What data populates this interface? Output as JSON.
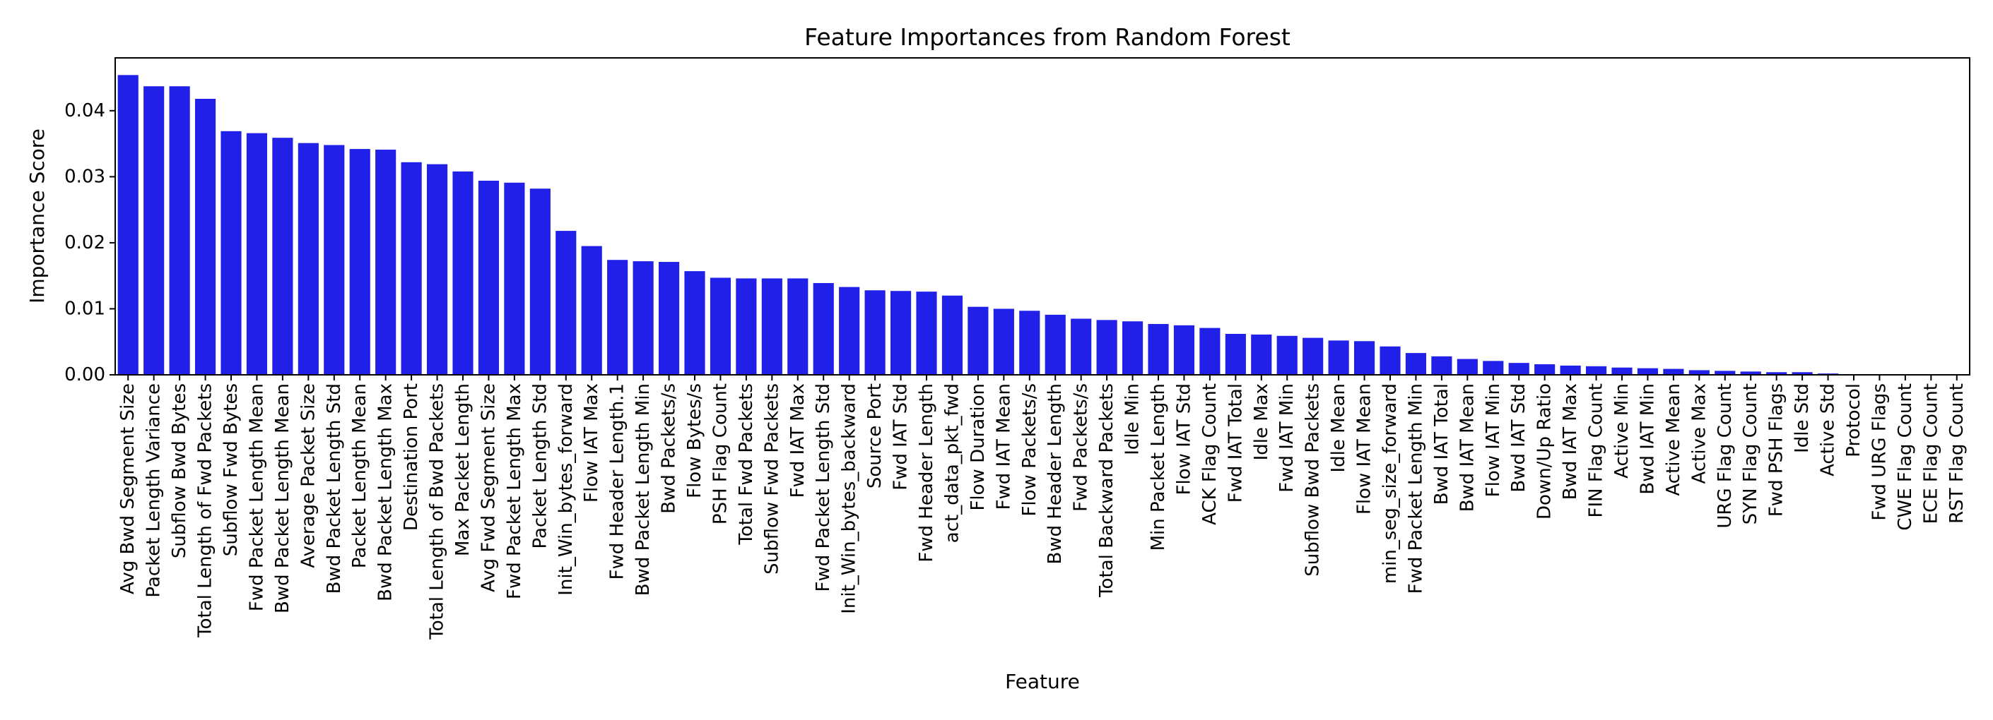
{
  "chart_data": {
    "type": "bar",
    "title": "Feature Importances from Random Forest",
    "xlabel": "Feature",
    "ylabel": "Importance Score",
    "ylim": [
      0,
      0.048
    ],
    "yticks": [
      "0.00",
      "0.01",
      "0.02",
      "0.03",
      "0.04"
    ],
    "grid": false,
    "color": "#2020e8",
    "categories": [
      "Avg Bwd Segment Size",
      "Packet Length Variance",
      "Subflow Bwd Bytes",
      "Total Length of Fwd Packets",
      "Subflow Fwd Bytes",
      "Fwd Packet Length Mean",
      "Bwd Packet Length Mean",
      "Average Packet Size",
      "Bwd Packet Length Std",
      "Packet Length Mean",
      "Bwd Packet Length Max",
      "Destination Port",
      "Total Length of Bwd Packets",
      "Max Packet Length",
      "Avg Fwd Segment Size",
      "Fwd Packet Length Max",
      "Packet Length Std",
      "Init_Win_bytes_forward",
      "Flow IAT Max",
      "Fwd Header Length.1",
      "Bwd Packet Length Min",
      "Bwd Packets/s",
      "Flow Bytes/s",
      "PSH Flag Count",
      "Total Fwd Packets",
      "Subflow Fwd Packets",
      "Fwd IAT Max",
      "Fwd Packet Length Std",
      "Init_Win_bytes_backward",
      "Source Port",
      "Fwd IAT Std",
      "Fwd Header Length",
      "act_data_pkt_fwd",
      "Flow Duration",
      "Fwd IAT Mean",
      "Flow Packets/s",
      "Bwd Header Length",
      "Fwd Packets/s",
      "Total Backward Packets",
      "Idle Min",
      "Min Packet Length",
      "Flow IAT Std",
      "ACK Flag Count",
      "Fwd IAT Total",
      "Idle Max",
      "Fwd IAT Min",
      "Subflow Bwd Packets",
      "Idle Mean",
      "Flow IAT Mean",
      "min_seg_size_forward",
      "Fwd Packet Length Min",
      "Bwd IAT Total",
      "Bwd IAT Mean",
      "Flow IAT Min",
      "Bwd IAT Std",
      "Down/Up Ratio",
      "Bwd IAT Max",
      "FIN Flag Count",
      "Active Min",
      "Bwd IAT Min",
      "Active Mean",
      "Active Max",
      "URG Flag Count",
      "SYN Flag Count",
      "Fwd PSH Flags",
      "Idle Std",
      "Active Std",
      "Protocol",
      "Fwd URG Flags",
      "CWE Flag Count",
      "ECE Flag Count",
      "RST Flag Count"
    ],
    "values": [
      0.0454,
      0.0437,
      0.0437,
      0.0418,
      0.0369,
      0.0366,
      0.0359,
      0.0351,
      0.0348,
      0.0342,
      0.0341,
      0.0322,
      0.0319,
      0.0308,
      0.0294,
      0.0291,
      0.0282,
      0.0218,
      0.0195,
      0.0174,
      0.0172,
      0.0171,
      0.0157,
      0.0147,
      0.0146,
      0.0146,
      0.0146,
      0.0139,
      0.0133,
      0.0128,
      0.0127,
      0.0126,
      0.012,
      0.0103,
      0.01,
      0.0097,
      0.0091,
      0.0085,
      0.0083,
      0.0081,
      0.0077,
      0.0075,
      0.0071,
      0.0062,
      0.0061,
      0.0059,
      0.0056,
      0.0052,
      0.0051,
      0.0043,
      0.0033,
      0.0028,
      0.0024,
      0.0021,
      0.0018,
      0.0016,
      0.0014,
      0.0013,
      0.0011,
      0.001,
      0.0009,
      0.0007,
      0.0006,
      0.0005,
      0.0004,
      0.0004,
      0.0002,
      0.0,
      0.0,
      0.0,
      0.0,
      0.0
    ]
  }
}
